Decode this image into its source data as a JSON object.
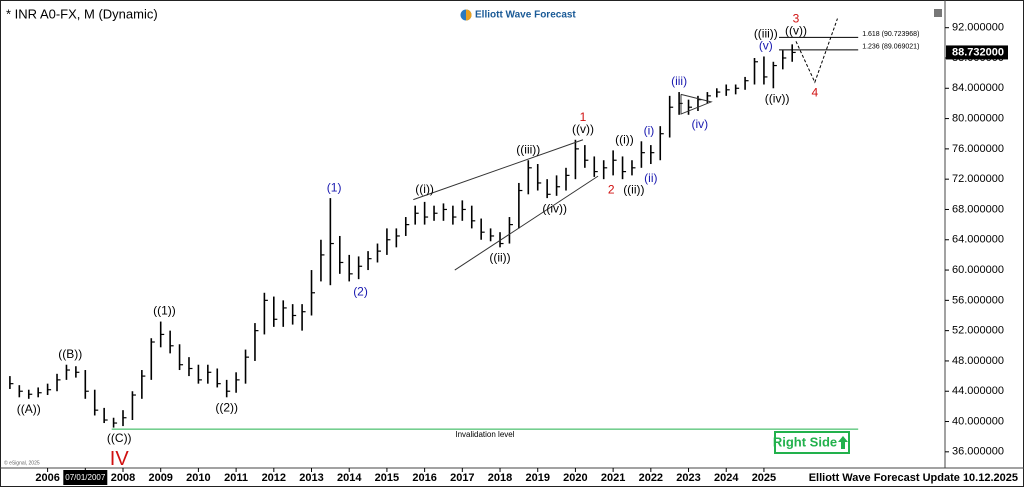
{
  "chart_data": {
    "type": "ohlc",
    "title": "* INR A0-FX, M (Dynamic)",
    "logo": "Elliott Wave Forecast",
    "copyright": "© eSignal, 2025",
    "footer": "Elliott Wave Forecast Update 10.12.2025",
    "badge": "Right Side",
    "crosshair_date": {
      "value": 2007.0,
      "label": "07/01/2007"
    },
    "color": "#000000",
    "xlim": [
      2004.87,
      2029.67
    ],
    "ylim": [
      33.6,
      94.6
    ],
    "xticks": [
      2006,
      2007,
      2008,
      2009,
      2010,
      2011,
      2012,
      2013,
      2014,
      2015,
      2016,
      2017,
      2018,
      2019,
      2020,
      2021,
      2022,
      2023,
      2024,
      2025
    ],
    "yticks": [
      {
        "value": 36,
        "label": "36.000000"
      },
      {
        "value": 40,
        "label": "40.000000"
      },
      {
        "value": 44,
        "label": "44.000000"
      },
      {
        "value": 48,
        "label": "48.000000"
      },
      {
        "value": 52,
        "label": "52.000000"
      },
      {
        "value": 56,
        "label": "56.000000"
      },
      {
        "value": 60,
        "label": "60.000000"
      },
      {
        "value": 64,
        "label": "64.000000"
      },
      {
        "value": 68,
        "label": "68.000000"
      },
      {
        "value": 72,
        "label": "72.000000"
      },
      {
        "value": 76,
        "label": "76.000000"
      },
      {
        "value": 80,
        "label": "80.000000"
      },
      {
        "value": 84,
        "label": "84.000000"
      },
      {
        "value": 88,
        "label": "88.000000"
      },
      {
        "value": 92,
        "label": "92.000000"
      }
    ],
    "last_price": {
      "value": 88.732,
      "label": "88.732000"
    },
    "x": [
      2005.0,
      2005.25,
      2005.5,
      2005.75,
      2006.0,
      2006.25,
      2006.5,
      2006.75,
      2007.0,
      2007.25,
      2007.5,
      2007.75,
      2008.0,
      2008.25,
      2008.5,
      2008.75,
      2009.0,
      2009.25,
      2009.5,
      2009.75,
      2010.0,
      2010.25,
      2010.5,
      2010.75,
      2011.0,
      2011.25,
      2011.5,
      2011.75,
      2012.0,
      2012.25,
      2012.5,
      2012.75,
      2013.0,
      2013.25,
      2013.5,
      2013.75,
      2014.0,
      2014.25,
      2014.5,
      2014.75,
      2015.0,
      2015.25,
      2015.5,
      2015.75,
      2016.0,
      2016.25,
      2016.5,
      2016.75,
      2017.0,
      2017.25,
      2017.5,
      2017.75,
      2018.0,
      2018.25,
      2018.5,
      2018.75,
      2019.0,
      2019.25,
      2019.5,
      2019.75,
      2020.0,
      2020.25,
      2020.5,
      2020.75,
      2021.0,
      2021.25,
      2021.5,
      2021.75,
      2022.0,
      2022.25,
      2022.5,
      2022.75,
      2023.0,
      2023.25,
      2023.5,
      2023.75,
      2024.0,
      2024.25,
      2024.5,
      2024.75,
      2025.0,
      2025.25,
      2025.5,
      2025.75
    ],
    "high": [
      46.0,
      44.8,
      44.2,
      44.5,
      45.0,
      46.3,
      47.5,
      47.3,
      46.8,
      44.2,
      41.8,
      40.5,
      41.5,
      44.0,
      46.8,
      51.0,
      53.2,
      52.0,
      50.2,
      48.5,
      47.5,
      47.5,
      47.0,
      45.5,
      46.5,
      49.5,
      53.0,
      57.0,
      56.5,
      56.0,
      55.5,
      55.5,
      60.0,
      64.0,
      69.5,
      64.5,
      62.0,
      61.8,
      62.5,
      63.5,
      65.5,
      65.5,
      67.0,
      68.5,
      69.0,
      68.5,
      68.8,
      68.5,
      69.2,
      68.5,
      66.8,
      65.5,
      65.0,
      67.0,
      71.5,
      74.5,
      74.0,
      72.0,
      72.5,
      73.5,
      77.2,
      76.5,
      75.0,
      74.5,
      75.8,
      75.0,
      74.5,
      77.0,
      76.5,
      79.0,
      83.0,
      83.5,
      82.5,
      83.0,
      83.5,
      84.0,
      84.5,
      84.5,
      85.5,
      88.0,
      88.2,
      87.5,
      89.0,
      89.8
    ],
    "low": [
      44.3,
      43.2,
      43.0,
      43.2,
      43.5,
      44.0,
      45.5,
      45.8,
      43.0,
      40.8,
      39.8,
      39.2,
      39.4,
      40.2,
      43.0,
      45.5,
      49.8,
      49.0,
      46.8,
      46.0,
      45.0,
      45.0,
      44.5,
      43.2,
      43.8,
      45.0,
      48.0,
      51.5,
      52.5,
      52.5,
      52.8,
      52.0,
      54.0,
      58.5,
      58.0,
      59.5,
      58.5,
      58.8,
      60.0,
      61.0,
      62.0,
      63.0,
      64.5,
      66.0,
      66.0,
      66.5,
      66.5,
      66.0,
      66.5,
      65.5,
      64.0,
      63.8,
      63.0,
      63.5,
      65.5,
      70.0,
      70.5,
      69.5,
      69.8,
      70.5,
      72.0,
      73.5,
      72.3,
      72.0,
      72.5,
      72.0,
      72.5,
      73.5,
      74.0,
      74.5,
      77.5,
      80.5,
      80.5,
      81.0,
      82.0,
      82.8,
      83.0,
      83.2,
      83.8,
      84.5,
      84.5,
      84.0,
      86.5,
      87.5
    ],
    "close": [
      45.0,
      44.0,
      43.6,
      43.8,
      44.2,
      45.5,
      46.8,
      46.5,
      44.0,
      41.5,
      40.2,
      39.8,
      40.5,
      43.5,
      46.0,
      50.5,
      51.5,
      50.0,
      47.5,
      47.0,
      45.5,
      46.5,
      45.0,
      44.0,
      45.5,
      48.5,
      52.0,
      56.0,
      53.5,
      55.0,
      54.0,
      54.5,
      57.0,
      62.0,
      63.5,
      61.0,
      59.5,
      60.5,
      61.5,
      62.5,
      64.0,
      64.5,
      66.0,
      67.5,
      67.0,
      67.5,
      68.0,
      67.0,
      68.0,
      66.5,
      65.0,
      64.5,
      63.5,
      66.0,
      70.5,
      73.5,
      71.5,
      70.0,
      71.0,
      72.5,
      76.0,
      74.5,
      73.0,
      73.5,
      74.5,
      73.0,
      73.5,
      75.5,
      75.5,
      78.0,
      81.5,
      82.0,
      81.5,
      82.5,
      83.0,
      83.5,
      83.8,
      84.0,
      85.0,
      87.5,
      85.5,
      87.0,
      88.0,
      88.732
    ],
    "levels": [
      {
        "label": "1.618 (90.723968)",
        "value": 90.723968,
        "x": [
          2025.4,
          2027.5
        ],
        "color": "#000000"
      },
      {
        "label": "1.236 (89.069021)",
        "value": 89.069021,
        "x": [
          2025.4,
          2027.5
        ],
        "color": "#000000"
      },
      {
        "label": "Invalidation level",
        "value": 39,
        "x": [
          2007.7,
          2027.5
        ],
        "color": "#22b14c"
      }
    ],
    "trendlines": [
      {
        "x": [
          2015.7,
          2020.2
        ],
        "y": [
          69.3,
          77.2
        ]
      },
      {
        "x": [
          2016.8,
          2020.6
        ],
        "y": [
          60,
          72.4
        ]
      },
      {
        "x": [
          2022.8,
          2023.6,
          2022.8,
          2022.8
        ],
        "y": [
          83.2,
          82.2,
          80.6,
          83.2
        ]
      }
    ],
    "projection": {
      "x": [
        2025.85,
        2026.35,
        2026.95
      ],
      "y": [
        90.2,
        84.8,
        93.2
      ]
    },
    "wave_labels": [
      {
        "text": "((A))",
        "x": 2005.5,
        "y": 43.0,
        "color": "#000000",
        "pos": "below"
      },
      {
        "text": "((B))",
        "x": 2006.6,
        "y": 47.5,
        "color": "#000000",
        "pos": "above"
      },
      {
        "text": "((C))",
        "x": 2007.9,
        "y": 39.2,
        "color": "#000000",
        "pos": "below"
      },
      {
        "text": "IV",
        "x": 2007.9,
        "y": 39.2,
        "color": "#d01010",
        "pos": "below-2",
        "size": "large"
      },
      {
        "text": "((1))",
        "x": 2009.1,
        "y": 53.2,
        "color": "#000000",
        "pos": "above"
      },
      {
        "text": "((2))",
        "x": 2010.75,
        "y": 43.2,
        "color": "#000000",
        "pos": "below"
      },
      {
        "text": "(1)",
        "x": 2013.6,
        "y": 69.5,
        "color": "#1a1ab0",
        "pos": "above"
      },
      {
        "text": "(2)",
        "x": 2014.3,
        "y": 58.5,
        "color": "#1a1ab0",
        "pos": "below"
      },
      {
        "text": "((i))",
        "x": 2016.0,
        "y": 69.3,
        "color": "#000000",
        "pos": "above"
      },
      {
        "text": "((ii))",
        "x": 2018.0,
        "y": 63.0,
        "color": "#000000",
        "pos": "below"
      },
      {
        "text": "((iii))",
        "x": 2018.75,
        "y": 74.5,
        "color": "#000000",
        "pos": "above"
      },
      {
        "text": "((iv))",
        "x": 2019.45,
        "y": 69.5,
        "color": "#000000",
        "pos": "below"
      },
      {
        "text": "((v))",
        "x": 2020.2,
        "y": 77.2,
        "color": "#000000",
        "pos": "above"
      },
      {
        "text": "1",
        "x": 2020.2,
        "y": 77.2,
        "color": "#d01010",
        "pos": "above-2"
      },
      {
        "text": "2",
        "x": 2020.95,
        "y": 72.0,
        "color": "#d01010",
        "pos": "below"
      },
      {
        "text": "((i))",
        "x": 2021.3,
        "y": 75.8,
        "color": "#000000",
        "pos": "above"
      },
      {
        "text": "((ii))",
        "x": 2021.55,
        "y": 72.0,
        "color": "#000000",
        "pos": "below"
      },
      {
        "text": "(i)",
        "x": 2021.95,
        "y": 77.0,
        "color": "#1a1ab0",
        "pos": "above"
      },
      {
        "text": "(ii)",
        "x": 2022.0,
        "y": 73.5,
        "color": "#1a1ab0",
        "pos": "below"
      },
      {
        "text": "(iii)",
        "x": 2022.75,
        "y": 83.5,
        "color": "#1a1ab0",
        "pos": "above"
      },
      {
        "text": "(iv)",
        "x": 2023.3,
        "y": 80.6,
        "color": "#1a1ab0",
        "pos": "below"
      },
      {
        "text": "(v)",
        "x": 2025.05,
        "y": 88.2,
        "color": "#1a1ab0",
        "pos": "above"
      },
      {
        "text": "((iii))",
        "x": 2025.05,
        "y": 88.2,
        "color": "#000000",
        "pos": "above-2"
      },
      {
        "text": "((iv))",
        "x": 2025.35,
        "y": 84.0,
        "color": "#000000",
        "pos": "below"
      },
      {
        "text": "((v))",
        "x": 2025.85,
        "y": 90.2,
        "color": "#000000",
        "pos": "above"
      },
      {
        "text": "3",
        "x": 2025.85,
        "y": 90.2,
        "color": "#d01010",
        "pos": "above-2"
      },
      {
        "text": "4",
        "x": 2026.35,
        "y": 84.8,
        "color": "#d01010",
        "pos": "below"
      }
    ]
  }
}
